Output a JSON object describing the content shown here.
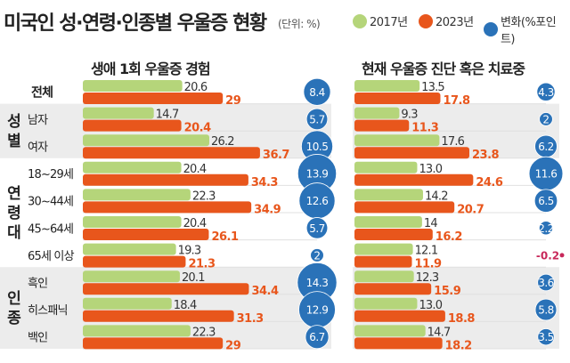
{
  "title": "미국인 성·연령·인종별 우울증 현황",
  "unit": "(단위: %)",
  "legend": [
    {
      "label": "2017년",
      "color": "#b5d57a"
    },
    {
      "label": "2023년",
      "color": "#e8561c"
    },
    {
      "label": "변화(%포인트)",
      "color": "#2a72b8"
    }
  ],
  "chart_data": [
    {
      "type": "bar",
      "title": "생애 1회 우울증 경험",
      "categories": [
        "전체",
        "남자",
        "여자",
        "18~29세",
        "30~44세",
        "45~64세",
        "65세 이상",
        "흑인",
        "히스패닉",
        "백인"
      ],
      "series": [
        {
          "name": "2017년",
          "values": [
            20.6,
            14.7,
            26.2,
            20.4,
            22.3,
            20.4,
            19.3,
            20.1,
            18.4,
            22.3
          ]
        },
        {
          "name": "2023년",
          "values": [
            29.0,
            20.4,
            36.7,
            34.3,
            34.9,
            26.1,
            21.3,
            34.4,
            31.3,
            29.0
          ]
        },
        {
          "name": "변화(%포인트)",
          "values": [
            "8.4",
            "5.7",
            "10.5",
            "13.9",
            "12.6",
            "5.7",
            "2",
            "14.3",
            "12.9",
            "6.7"
          ]
        }
      ]
    },
    {
      "type": "bar",
      "title": "현재 우울증 진단 혹은 치료중",
      "categories": [
        "전체",
        "남자",
        "여자",
        "18~29세",
        "30~44세",
        "45~64세",
        "65세 이상",
        "흑인",
        "히스패닉",
        "백인"
      ],
      "series": [
        {
          "name": "2017년",
          "values": [
            "13.5",
            "9.3",
            "17.6",
            "13.0",
            "14.2",
            "14",
            "12.1",
            "12.3",
            "13.0",
            "14.7"
          ]
        },
        {
          "name": "2023년",
          "values": [
            "17.8",
            "11.3",
            "23.8",
            "24.6",
            "20.7",
            "16.2",
            "11.9",
            "15.9",
            "18.8",
            "18.2"
          ]
        },
        {
          "name": "변화(%포인트)",
          "values": [
            "4.3",
            "2",
            "6.2",
            "11.6",
            "6.5",
            "2.2",
            "-0.2",
            "3.6",
            "5.8",
            "3.5"
          ]
        }
      ]
    }
  ],
  "groups": [
    {
      "label": "성별",
      "rows": [
        1,
        2
      ]
    },
    {
      "label": "연령대",
      "rows": [
        3,
        6
      ]
    },
    {
      "label": "인종",
      "rows": [
        7,
        9
      ]
    }
  ],
  "negative_color": "#c8285a"
}
